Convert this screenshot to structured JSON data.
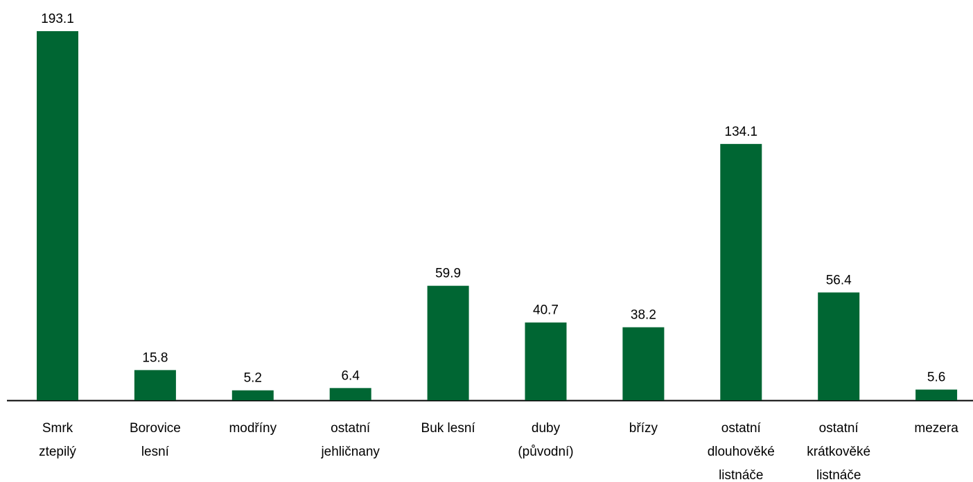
{
  "chart_data": {
    "type": "bar",
    "color": "#006633",
    "categories": [
      [
        "Smrk",
        "ztepilý"
      ],
      [
        "Borovice",
        "lesní"
      ],
      [
        "modříny"
      ],
      [
        "ostatní",
        "jehličnany"
      ],
      [
        "Buk lesní"
      ],
      [
        "duby",
        "(původní)"
      ],
      [
        "břízy"
      ],
      [
        "ostatní",
        "dlouhověké",
        "listnáče"
      ],
      [
        "ostatní",
        "krátkověké",
        "listnáče"
      ],
      [
        "mezera"
      ]
    ],
    "values": [
      193.1,
      15.8,
      5.2,
      6.4,
      59.9,
      40.7,
      38.2,
      134.1,
      56.4,
      5.6
    ]
  }
}
